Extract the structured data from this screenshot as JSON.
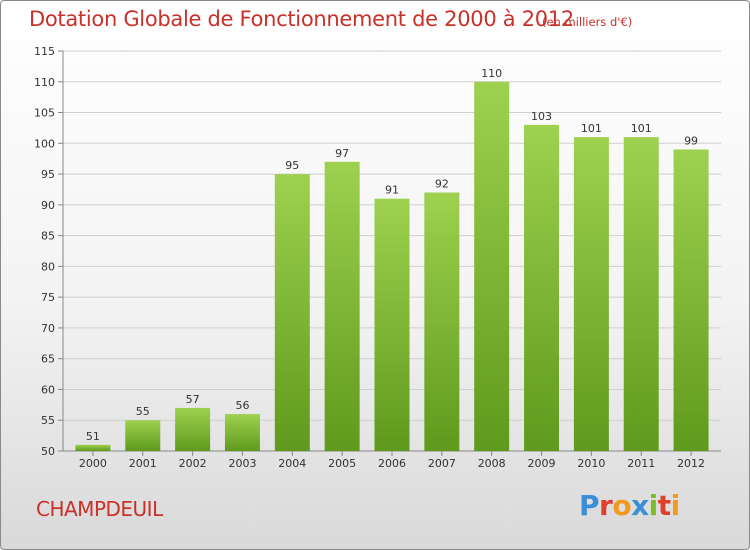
{
  "title": "Dotation Globale de Fonctionnement de 2000 à 2012",
  "subtitle": "(en milliers d'€)",
  "commune": "CHAMPDEUIL",
  "logo": {
    "text": "Proxiti",
    "colors": [
      "#3a8fd6",
      "#e0402b",
      "#f29a1e",
      "#3a8fd6",
      "#7dbb2a",
      "#e0402b",
      "#f29a1e"
    ]
  },
  "colors": {
    "title": "#c8322b",
    "bar_top": "#9ed14f",
    "bar_bottom": "#5f9a1c",
    "grid": "#d0d0d0"
  },
  "chart_data": {
    "type": "bar",
    "categories": [
      "2000",
      "2001",
      "2002",
      "2003",
      "2004",
      "2005",
      "2006",
      "2007",
      "2008",
      "2009",
      "2010",
      "2011",
      "2012"
    ],
    "values": [
      51,
      55,
      57,
      56,
      95,
      97,
      91,
      92,
      110,
      103,
      101,
      101,
      99
    ],
    "ylim": [
      50,
      115
    ],
    "yticks": [
      50,
      55,
      60,
      65,
      70,
      75,
      80,
      85,
      90,
      95,
      100,
      105,
      110,
      115
    ],
    "grid": true,
    "legend": "none",
    "title": "Dotation Globale de Fonctionnement de 2000 à 2012",
    "ylabel": "",
    "xlabel": ""
  }
}
